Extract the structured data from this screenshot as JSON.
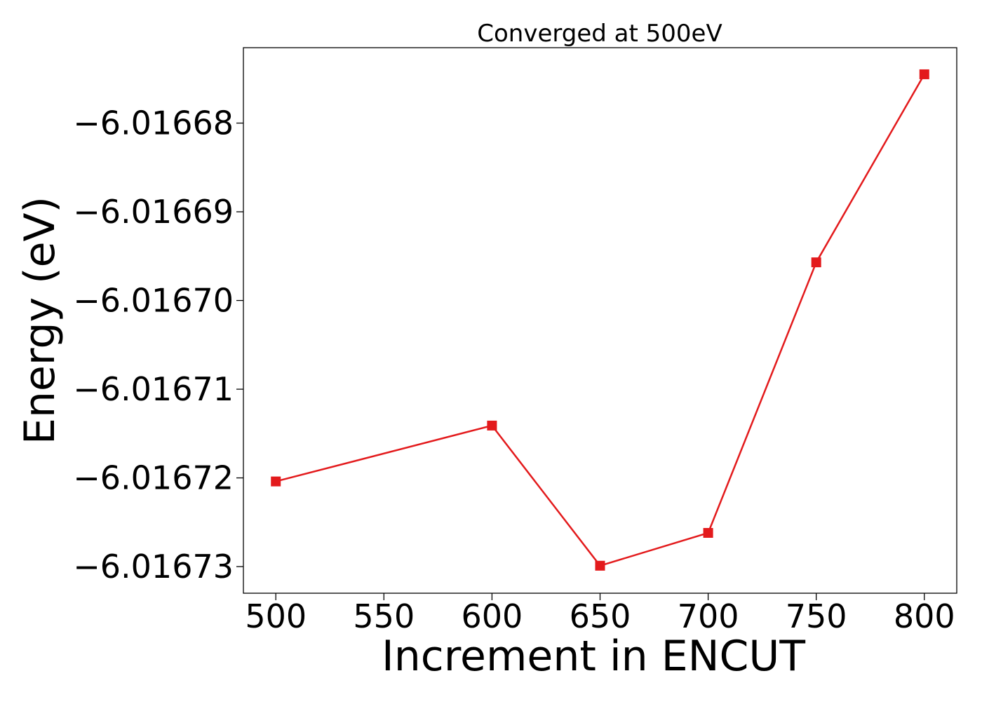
{
  "chart_data": {
    "type": "line",
    "title": "Converged at 500eV",
    "xlabel": "Increment in ENCUT",
    "ylabel": "Energy (eV)",
    "xlim": [
      485,
      815
    ],
    "ylim": [
      -6.016733,
      -6.0166715
    ],
    "x_ticks": [
      500,
      550,
      600,
      650,
      700,
      750,
      800
    ],
    "x_tick_labels": [
      "500",
      "550",
      "600",
      "650",
      "700",
      "750",
      "800"
    ],
    "y_ticks": [
      -6.01668,
      -6.01669,
      -6.0167,
      -6.01671,
      -6.01672,
      -6.01673
    ],
    "y_tick_labels": [
      "−6.01668",
      "−6.01669",
      "−6.01670",
      "−6.01671",
      "−6.01672",
      "−6.01673"
    ],
    "grid": false,
    "legend": "none",
    "series": [
      {
        "color": "#e31a1c",
        "marker": "square",
        "x": [
          500,
          600,
          650,
          700,
          750,
          800
        ],
        "y": [
          -6.0167204,
          -6.0167141,
          -6.0167299,
          -6.0167262,
          -6.0166957,
          -6.0166745
        ]
      }
    ]
  }
}
